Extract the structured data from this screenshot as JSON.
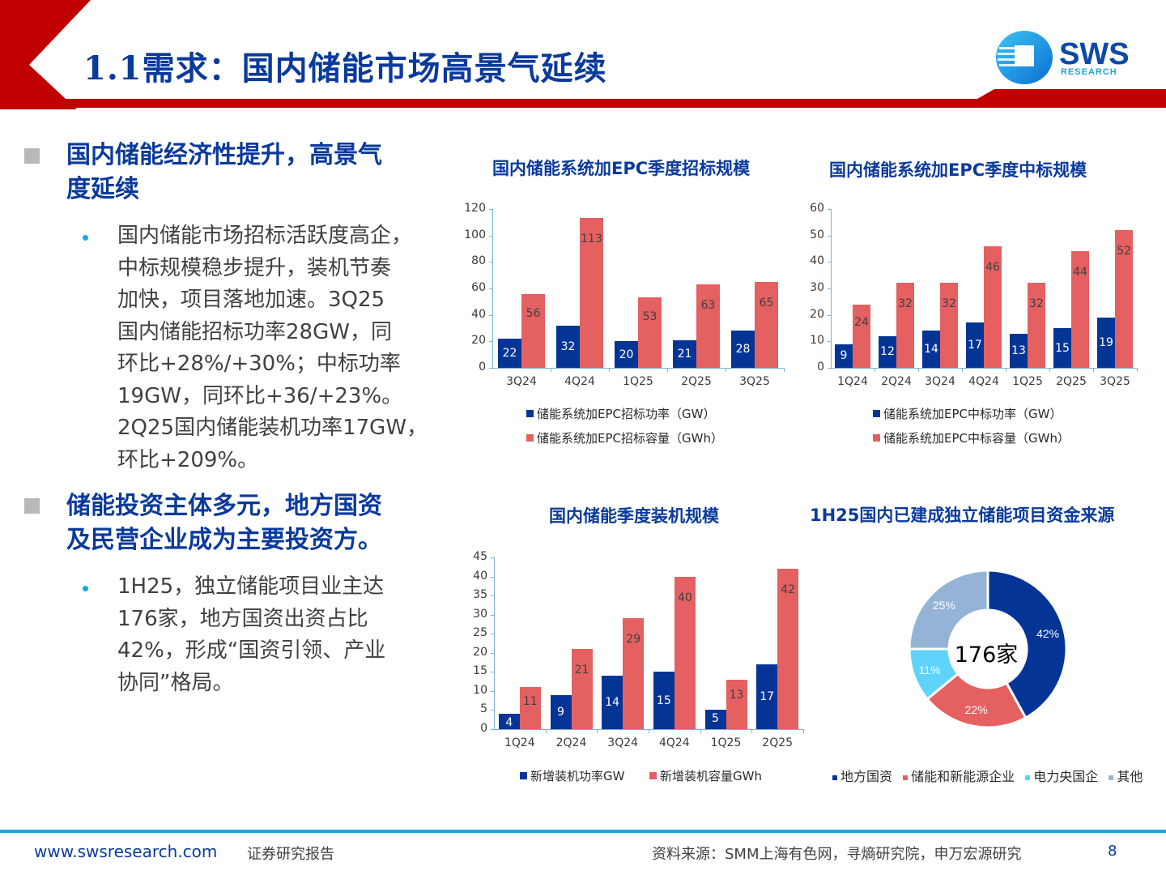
{
  "header": {
    "title": "1.1需求：国内储能市场高景气延续",
    "logo": {
      "name": "SWS",
      "subtitle": "RESEARCH"
    }
  },
  "colors": {
    "brand_red": "#c00000",
    "title_blue": "#0a3a9c",
    "bar_blue": "#043596",
    "bar_red": "#e56061",
    "light_blue": "#5fd3fb",
    "grey_blue": "#94b3d7"
  },
  "sections": [
    {
      "heading": [
        "国内储能经济性提升，高景气",
        "度延续"
      ],
      "bullets": [
        [
          "国内储能市场招标活跃度高企，",
          "中标规模稳步提升，装机节奏",
          "加快，项目落地加速。3Q25",
          "国内储能招标功率28GW，同",
          "环比+28%/+30%；中标功率",
          "19GW，同环比+36/+23%。",
          "2Q25国内储能装机功率17GW，",
          "环比+209%。"
        ]
      ]
    },
    {
      "heading": [
        "储能投资主体多元，地方国资",
        "及民营企业成为主要投资方。"
      ],
      "bullets": [
        [
          "1H25，独立储能项目业主达",
          "176家，地方国资出资占比",
          "42%，形成“国资引领、产业",
          "协同”格局。"
        ]
      ]
    }
  ],
  "footer": {
    "website": "www.swsresearch.com",
    "label": "证券研究报告",
    "source": "资料来源：SMM上海有色网，寻熵研究院，申万宏源研究",
    "page": "8"
  },
  "chart_data": [
    {
      "type": "bar",
      "title": "国内储能系统加EPC季度招标规模",
      "categories": [
        "3Q24",
        "4Q24",
        "1Q25",
        "2Q25",
        "3Q25"
      ],
      "series": [
        {
          "name": "储能系统加EPC招标功率（GW）",
          "values": [
            22,
            32,
            20,
            21,
            28
          ]
        },
        {
          "name": "储能系统加EPC招标容量（GWh）",
          "values": [
            56,
            113,
            53,
            63,
            65
          ]
        }
      ],
      "yticks": [
        0,
        20,
        40,
        60,
        80,
        100,
        120
      ],
      "ylim": [
        0,
        120
      ],
      "xlabel": "",
      "ylabel": "",
      "grid": false,
      "legend_position": "bottom"
    },
    {
      "type": "bar",
      "title": "国内储能系统加EPC季度中标规模",
      "categories": [
        "1Q24",
        "2Q24",
        "3Q24",
        "4Q24",
        "1Q25",
        "2Q25",
        "3Q25"
      ],
      "series": [
        {
          "name": "储能系统加EPC中标功率（GW）",
          "values": [
            9,
            12,
            14,
            17,
            13,
            15,
            19
          ]
        },
        {
          "name": "储能系统加EPC中标容量（GWh）",
          "values": [
            24,
            32,
            32,
            46,
            32,
            44,
            52
          ]
        }
      ],
      "yticks": [
        0,
        10,
        20,
        30,
        40,
        50,
        60
      ],
      "ylim": [
        0,
        60
      ],
      "xlabel": "",
      "ylabel": "",
      "grid": false,
      "legend_position": "bottom"
    },
    {
      "type": "bar",
      "title": "国内储能季度装机规模",
      "categories": [
        "1Q24",
        "2Q24",
        "3Q24",
        "4Q24",
        "1Q25",
        "2Q25"
      ],
      "series": [
        {
          "name": "新增装机功率GW",
          "values": [
            4,
            9,
            14,
            15,
            5,
            17
          ]
        },
        {
          "name": "新增装机容量GWh",
          "values": [
            11,
            21,
            29,
            40,
            13,
            42
          ]
        }
      ],
      "yticks": [
        0,
        5,
        10,
        15,
        20,
        25,
        30,
        35,
        40,
        45
      ],
      "ylim": [
        0,
        45
      ],
      "xlabel": "",
      "ylabel": "",
      "grid": false,
      "legend_position": "bottom"
    },
    {
      "type": "pie",
      "title": "1H25国内已建成独立储能项目资金来源",
      "center_label": "176家",
      "categories": [
        "地方国资",
        "储能和新能源企业",
        "电力央国企",
        "其他"
      ],
      "values": [
        42,
        22,
        11,
        25
      ],
      "labels": [
        "42%",
        "22%",
        "11%",
        "25%"
      ],
      "colors": [
        "#043596",
        "#e56061",
        "#5fd3fb",
        "#94b3d7"
      ],
      "legend_position": "bottom"
    }
  ]
}
